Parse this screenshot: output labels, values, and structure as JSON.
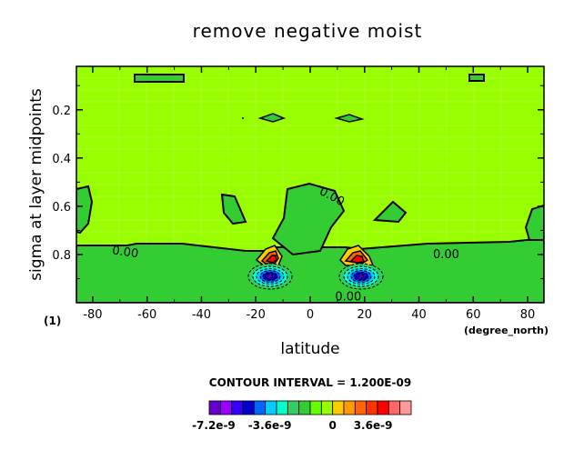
{
  "chart_data": {
    "type": "heatmap",
    "title": "remove negative moist",
    "xlabel": "latitude",
    "ylabel": "sigma at layer midpoints",
    "x_unit_label": "(degree_north)",
    "y_unit_label": "(1)",
    "xlim": [
      -86,
      86
    ],
    "ylim": [
      1.0,
      0.02
    ],
    "x_ticks": [
      -80,
      -60,
      -40,
      -20,
      0,
      20,
      40,
      60,
      80
    ],
    "y_ticks": [
      0.2,
      0.4,
      0.6,
      0.8
    ],
    "y_tick_labels": [
      "0.2",
      "0.4",
      "0.6",
      "0.8"
    ],
    "background_color": "#99ff00",
    "contour_interval_text": "CONTOUR INTERVAL = 1.200E-09",
    "contour_labels": [
      {
        "text": "0.00",
        "x": -68,
        "y": 0.79
      },
      {
        "text": "0.00",
        "x": 8,
        "y": 0.56
      },
      {
        "text": "0.00",
        "x": 50,
        "y": 0.8
      },
      {
        "text": "0.00",
        "x": 14,
        "y": 0.975
      }
    ],
    "colorbar": {
      "colors": [
        "#6600cc",
        "#9900ff",
        "#3300ff",
        "#0000cc",
        "#0066ff",
        "#00ccff",
        "#00ffcc",
        "#33cc66",
        "#33cc33",
        "#66ff00",
        "#99ff00",
        "#ffcc00",
        "#ff9900",
        "#ff6600",
        "#ff3300",
        "#ff0000",
        "#ff6666",
        "#ff9999"
      ],
      "tick_labels": [
        "-7.2e-9",
        "-3.6e-9",
        "0",
        "3.6e-9"
      ]
    },
    "features": [
      {
        "name": "negative core SH",
        "x": -13,
        "y": 0.91,
        "value": -7.2e-09
      },
      {
        "name": "negative core NH",
        "x": 20,
        "y": 0.91,
        "value": -7.2e-09
      },
      {
        "name": "positive core SH",
        "x": -13,
        "y": 0.82,
        "value": 3.6e-09
      },
      {
        "name": "positive core NH",
        "x": 20,
        "y": 0.82,
        "value": 3.6e-09
      }
    ]
  }
}
